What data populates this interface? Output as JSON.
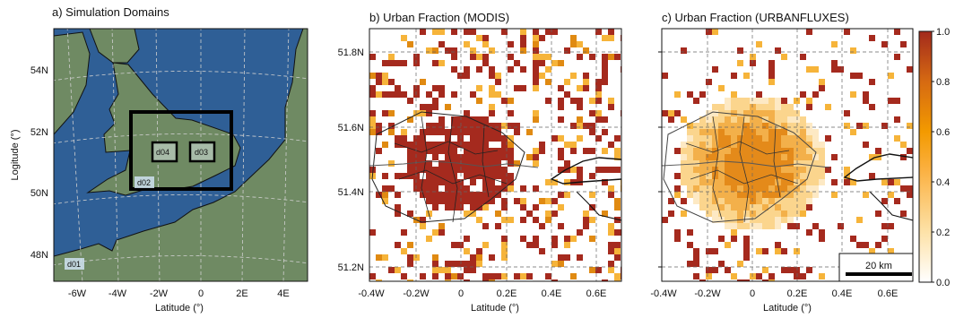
{
  "panels": {
    "a": {
      "title": "a) Simulation Domains",
      "xlabel": "Latitude (°)",
      "ylabel": "Logitude (°)",
      "xticks": [
        "-6W",
        "-4W",
        "-2W",
        "0",
        "2E",
        "4E"
      ],
      "yticks": [
        "54N",
        "52N",
        "50N",
        "48N"
      ],
      "domains": [
        "d01",
        "d02",
        "d03",
        "d04"
      ]
    },
    "b": {
      "title": "b) Urban Fraction (MODIS)",
      "xlabel": "Latitude (°)",
      "xticks": [
        "-0.4W",
        "-0.2W",
        "0",
        "0.2E",
        "0.4E",
        "0.6E"
      ],
      "yticks": [
        "51.8N",
        "51.6N",
        "51.4N",
        "51.2N"
      ]
    },
    "c": {
      "title": "c) Urban Fraction (URBANFLUXES)",
      "xlabel": "Latitude (°)",
      "xticks": [
        "-0.4W",
        "-0.2W",
        "0",
        "0.2E",
        "0.4E",
        "0.6E"
      ],
      "scalebar": "20 km"
    }
  },
  "colorbar": {
    "ticks": [
      "1.0",
      "0.8",
      "0.6",
      "0.4",
      "0.2",
      "0.0"
    ],
    "colors": [
      "#ffffff",
      "#fde2a8",
      "#fbb040",
      "#f39a00",
      "#d66a12",
      "#a32a1c"
    ]
  },
  "colors": {
    "sea": "#2f5f96",
    "land": "#6f8a63",
    "urban": "#a52a1e",
    "mid": "#e08a12",
    "low": "#f6b43a"
  }
}
